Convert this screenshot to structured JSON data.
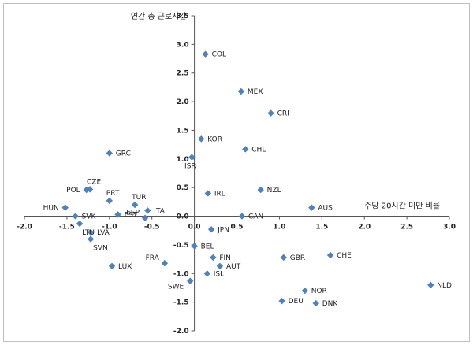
{
  "chart_data": {
    "type": "scatter",
    "xlabel": "주당 20시간 미만 비율",
    "ylabel": "연간 총 근로시간",
    "xlim": [
      -2.0,
      3.0
    ],
    "ylim": [
      -2.0,
      3.5
    ],
    "xticks": [
      "-2.0",
      "-1.5",
      "-1.0",
      "-0.5",
      "0.0",
      "0.5",
      "1.0",
      "1.5",
      "2.0",
      "2.5",
      "3.0"
    ],
    "yticks": [
      "3.5",
      "3.0",
      "2.5",
      "2.0",
      "1.5",
      "1.0",
      "0.5",
      "0.0",
      "-0.5",
      "-1.0",
      "-1.5",
      "-2.0"
    ],
    "marker_color": "#4f81bd",
    "points": [
      {
        "label": "COL",
        "x": 0.13,
        "y": 2.83
      },
      {
        "label": "MEX",
        "x": 0.55,
        "y": 2.18
      },
      {
        "label": "CRI",
        "x": 0.9,
        "y": 1.8
      },
      {
        "label": "KOR",
        "x": 0.08,
        "y": 1.35
      },
      {
        "label": "CHL",
        "x": 0.6,
        "y": 1.17
      },
      {
        "label": "GRC",
        "x": -1.0,
        "y": 1.1
      },
      {
        "label": "ISR",
        "x": -0.03,
        "y": 1.03
      },
      {
        "label": "CZE",
        "x": -1.23,
        "y": 0.47
      },
      {
        "label": "POL",
        "x": -1.27,
        "y": 0.46
      },
      {
        "label": "NZL",
        "x": 0.78,
        "y": 0.46
      },
      {
        "label": "IRL",
        "x": 0.16,
        "y": 0.4
      },
      {
        "label": "PRT",
        "x": -1.0,
        "y": 0.27
      },
      {
        "label": "TUR",
        "x": -0.7,
        "y": 0.2
      },
      {
        "label": "HUN",
        "x": -1.52,
        "y": 0.15
      },
      {
        "label": "AUS",
        "x": 1.38,
        "y": 0.15
      },
      {
        "label": "ITA",
        "x": -0.55,
        "y": 0.1
      },
      {
        "label": "EST",
        "x": -0.9,
        "y": 0.03
      },
      {
        "label": "SVK",
        "x": -1.4,
        "y": 0.0
      },
      {
        "label": "CAN",
        "x": 0.56,
        "y": 0.0
      },
      {
        "label": "ESP",
        "x": -0.58,
        "y": -0.03
      },
      {
        "label": "LTU",
        "x": -1.35,
        "y": -0.13
      },
      {
        "label": "JPN",
        "x": 0.2,
        "y": -0.23
      },
      {
        "label": "LVA",
        "x": -1.22,
        "y": -0.28
      },
      {
        "label": "SVN",
        "x": -1.22,
        "y": -0.4
      },
      {
        "label": "BEL",
        "x": 0.0,
        "y": -0.52
      },
      {
        "label": "FIN",
        "x": 0.22,
        "y": -0.72
      },
      {
        "label": "GBR",
        "x": 1.05,
        "y": -0.72
      },
      {
        "label": "CHE",
        "x": 1.6,
        "y": -0.68
      },
      {
        "label": "FRA",
        "x": -0.35,
        "y": -0.82
      },
      {
        "label": "AUT",
        "x": 0.3,
        "y": -0.87
      },
      {
        "label": "LUX",
        "x": -0.97,
        "y": -0.87
      },
      {
        "label": "ISL",
        "x": 0.15,
        "y": -1.0
      },
      {
        "label": "SWE",
        "x": -0.05,
        "y": -1.13
      },
      {
        "label": "NLD",
        "x": 2.78,
        "y": -1.2
      },
      {
        "label": "NOR",
        "x": 1.3,
        "y": -1.3
      },
      {
        "label": "DEU",
        "x": 1.03,
        "y": -1.48
      },
      {
        "label": "DNK",
        "x": 1.43,
        "y": -1.52
      }
    ]
  }
}
